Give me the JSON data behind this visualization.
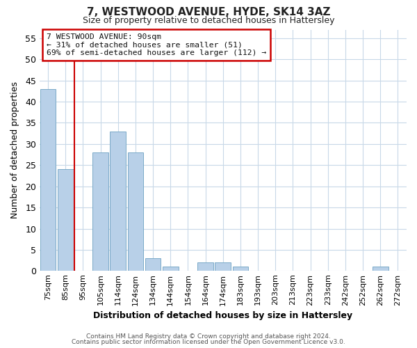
{
  "title": "7, WESTWOOD AVENUE, HYDE, SK14 3AZ",
  "subtitle": "Size of property relative to detached houses in Hattersley",
  "xlabel": "Distribution of detached houses by size in Hattersley",
  "ylabel": "Number of detached properties",
  "bar_labels": [
    "75sqm",
    "85sqm",
    "95sqm",
    "105sqm",
    "114sqm",
    "124sqm",
    "134sqm",
    "144sqm",
    "154sqm",
    "164sqm",
    "174sqm",
    "183sqm",
    "193sqm",
    "203sqm",
    "213sqm",
    "223sqm",
    "233sqm",
    "242sqm",
    "252sqm",
    "262sqm",
    "272sqm"
  ],
  "bar_values": [
    43,
    24,
    0,
    28,
    33,
    28,
    3,
    1,
    0,
    2,
    2,
    1,
    0,
    0,
    0,
    0,
    0,
    0,
    0,
    1,
    0
  ],
  "bar_color": "#b8d0e8",
  "bar_edge_color": "#7aaac8",
  "ylim": [
    0,
    57
  ],
  "yticks": [
    0,
    5,
    10,
    15,
    20,
    25,
    30,
    35,
    40,
    45,
    50,
    55
  ],
  "vline_x": 1.5,
  "vline_color": "#cc0000",
  "annotation_title": "7 WESTWOOD AVENUE: 90sqm",
  "annotation_line1": "← 31% of detached houses are smaller (51)",
  "annotation_line2": "69% of semi-detached houses are larger (112) →",
  "annotation_box_color": "#cc0000",
  "footer_line1": "Contains HM Land Registry data © Crown copyright and database right 2024.",
  "footer_line2": "Contains public sector information licensed under the Open Government Licence v3.0.",
  "background_color": "#ffffff",
  "grid_color": "#c8d8e8"
}
